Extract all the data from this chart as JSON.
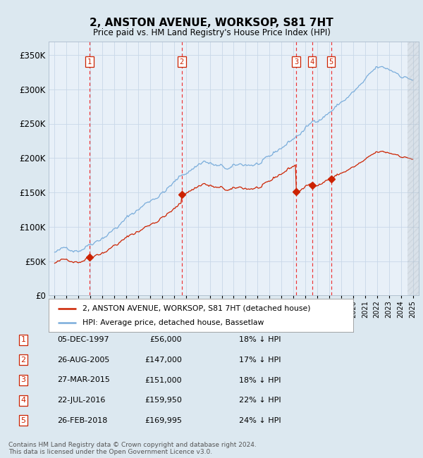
{
  "title": "2, ANSTON AVENUE, WORKSOP, S81 7HT",
  "subtitle": "Price paid vs. HM Land Registry's House Price Index (HPI)",
  "footer1": "Contains HM Land Registry data © Crown copyright and database right 2024.",
  "footer2": "This data is licensed under the Open Government Licence v3.0.",
  "legend_property": "2, ANSTON AVENUE, WORKSOP, S81 7HT (detached house)",
  "legend_hpi": "HPI: Average price, detached house, Bassetlaw",
  "ylabel_ticks": [
    "£0",
    "£50K",
    "£100K",
    "£150K",
    "£200K",
    "£250K",
    "£300K",
    "£350K"
  ],
  "ylabel_values": [
    0,
    50000,
    100000,
    150000,
    200000,
    250000,
    300000,
    350000
  ],
  "ylim": [
    0,
    370000
  ],
  "transactions": [
    {
      "num": 1,
      "date": "05-DEC-1997",
      "price": 56000,
      "year": 1997.92,
      "pct": "18%"
    },
    {
      "num": 2,
      "date": "26-AUG-2005",
      "price": 147000,
      "year": 2005.65,
      "pct": "17%"
    },
    {
      "num": 3,
      "date": "27-MAR-2015",
      "price": 151000,
      "year": 2015.23,
      "pct": "18%"
    },
    {
      "num": 4,
      "date": "22-JUL-2016",
      "price": 159950,
      "year": 2016.56,
      "pct": "22%"
    },
    {
      "num": 5,
      "date": "26-FEB-2018",
      "price": 169995,
      "year": 2018.15,
      "pct": "24%"
    }
  ],
  "xlim": [
    1994.5,
    2025.5
  ],
  "xtick_years": [
    1995,
    1996,
    1997,
    1998,
    1999,
    2000,
    2001,
    2002,
    2003,
    2004,
    2005,
    2006,
    2007,
    2008,
    2009,
    2010,
    2011,
    2012,
    2013,
    2014,
    2015,
    2016,
    2017,
    2018,
    2019,
    2020,
    2021,
    2022,
    2023,
    2024,
    2025
  ],
  "hpi_color": "#7aaddb",
  "property_color": "#cc2200",
  "grid_color": "#c8d8e8",
  "background_color": "#dce8f0",
  "plot_bg": "#e8f0f8",
  "vline_color": "#ee3333",
  "label_box_color": "#cc2200",
  "hatch_color": "#b0b8c0"
}
